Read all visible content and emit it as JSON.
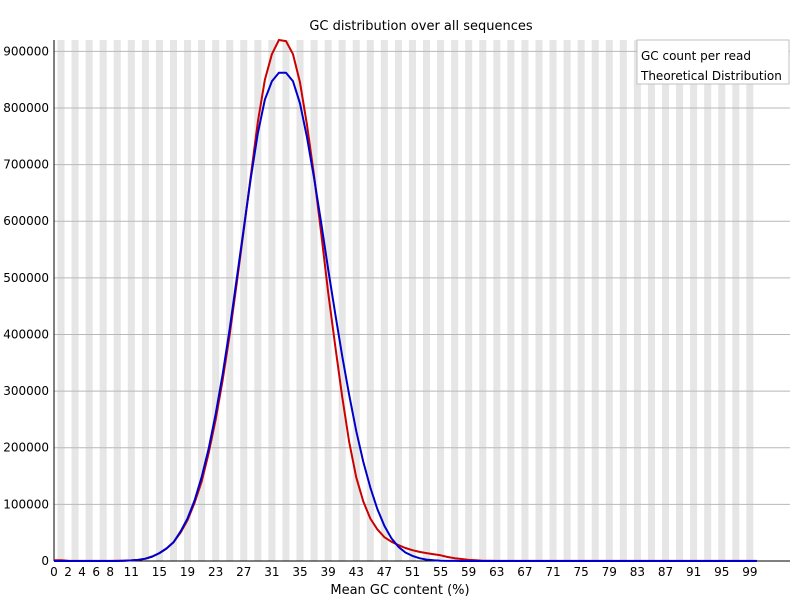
{
  "chart_data": {
    "type": "line",
    "title": "GC distribution over all sequences",
    "xlabel": "Mean GC content (%)",
    "ylabel": "",
    "xlim": [
      0,
      100
    ],
    "ylim": [
      0,
      920000
    ],
    "x_ticks": [
      0,
      2,
      4,
      6,
      8,
      11,
      15,
      19,
      23,
      27,
      31,
      35,
      39,
      43,
      47,
      51,
      55,
      59,
      63,
      67,
      71,
      75,
      79,
      83,
      87,
      91,
      95,
      99
    ],
    "y_ticks": [
      0,
      100000,
      200000,
      300000,
      400000,
      500000,
      600000,
      700000,
      800000,
      900000
    ],
    "grid": true,
    "legend_position": "top-right",
    "series": [
      {
        "name": "GC count per read",
        "color": "#cc0000",
        "x": [
          0,
          1,
          2,
          3,
          4,
          5,
          6,
          7,
          8,
          9,
          10,
          11,
          12,
          13,
          14,
          15,
          16,
          17,
          18,
          19,
          20,
          21,
          22,
          23,
          24,
          25,
          26,
          27,
          28,
          29,
          30,
          31,
          32,
          33,
          34,
          35,
          36,
          37,
          38,
          39,
          40,
          41,
          42,
          43,
          44,
          45,
          46,
          47,
          48,
          49,
          50,
          51,
          52,
          53,
          54,
          55,
          56,
          57,
          58,
          59,
          60,
          61,
          62,
          63,
          64,
          65,
          66,
          67,
          68,
          69,
          70,
          71,
          72,
          73,
          74,
          75,
          76,
          77,
          78,
          79,
          80,
          81,
          82,
          83,
          84,
          85,
          86,
          87,
          88,
          89,
          90,
          91,
          92,
          93,
          94,
          95,
          96,
          97,
          98,
          99,
          100
        ],
        "values": [
          1500,
          1200,
          500,
          200,
          100,
          100,
          100,
          100,
          200,
          300,
          600,
          1000,
          2000,
          4000,
          8000,
          14000,
          22000,
          33000,
          50000,
          72000,
          103000,
          140000,
          190000,
          250000,
          320000,
          400000,
          490000,
          585000,
          680000,
          775000,
          850000,
          895000,
          920000,
          918000,
          895000,
          845000,
          770000,
          680000,
          580000,
          475000,
          380000,
          290000,
          210000,
          148000,
          105000,
          75000,
          56000,
          42000,
          34000,
          28000,
          23000,
          19000,
          16000,
          14000,
          12000,
          10000,
          7000,
          5000,
          3500,
          2000,
          1200,
          600,
          300,
          200,
          100,
          100,
          100,
          100,
          100,
          100,
          100,
          100,
          100,
          100,
          100,
          100,
          100,
          100,
          100,
          100,
          100,
          100,
          100,
          100,
          100,
          100,
          100,
          100,
          100,
          100,
          100,
          100,
          100,
          100,
          100,
          100,
          100,
          100,
          100,
          100,
          100
        ]
      },
      {
        "name": "Theoretical Distribution",
        "color": "#0000cc",
        "x": [
          0,
          1,
          2,
          3,
          4,
          5,
          6,
          7,
          8,
          9,
          10,
          11,
          12,
          13,
          14,
          15,
          16,
          17,
          18,
          19,
          20,
          21,
          22,
          23,
          24,
          25,
          26,
          27,
          28,
          29,
          30,
          31,
          32,
          33,
          34,
          35,
          36,
          37,
          38,
          39,
          40,
          41,
          42,
          43,
          44,
          45,
          46,
          47,
          48,
          49,
          50,
          51,
          52,
          53,
          54,
          55,
          56,
          57,
          58,
          59,
          60,
          61,
          62,
          63,
          64,
          65,
          66,
          67,
          68,
          69,
          70,
          71,
          72,
          73,
          74,
          75,
          76,
          77,
          78,
          79,
          80,
          81,
          82,
          83,
          84,
          85,
          86,
          87,
          88,
          89,
          90,
          91,
          92,
          93,
          94,
          95,
          96,
          97,
          98,
          99,
          100
        ],
        "values": [
          0,
          0,
          0,
          0,
          0,
          0,
          0,
          0,
          0,
          0,
          500,
          1000,
          2000,
          4000,
          8000,
          14000,
          22000,
          33000,
          52000,
          75000,
          107000,
          148000,
          198000,
          260000,
          330000,
          410000,
          498000,
          588000,
          676000,
          755000,
          815000,
          847000,
          862000,
          862000,
          847000,
          808000,
          748000,
          676000,
          598000,
          516000,
          437000,
          362000,
          293000,
          230000,
          175000,
          130000,
          92000,
          62000,
          40000,
          25000,
          15000,
          9000,
          5000,
          2500,
          1200,
          500,
          200,
          100,
          0,
          0,
          0,
          0,
          0,
          0,
          0,
          0,
          0,
          0,
          0,
          0,
          0,
          0,
          0,
          0,
          0,
          0,
          0,
          0,
          0,
          0,
          0,
          0,
          0,
          0,
          0,
          0,
          0,
          0,
          0,
          0,
          0,
          0,
          0,
          0,
          0,
          0,
          0,
          0,
          0,
          0,
          0
        ]
      }
    ]
  }
}
